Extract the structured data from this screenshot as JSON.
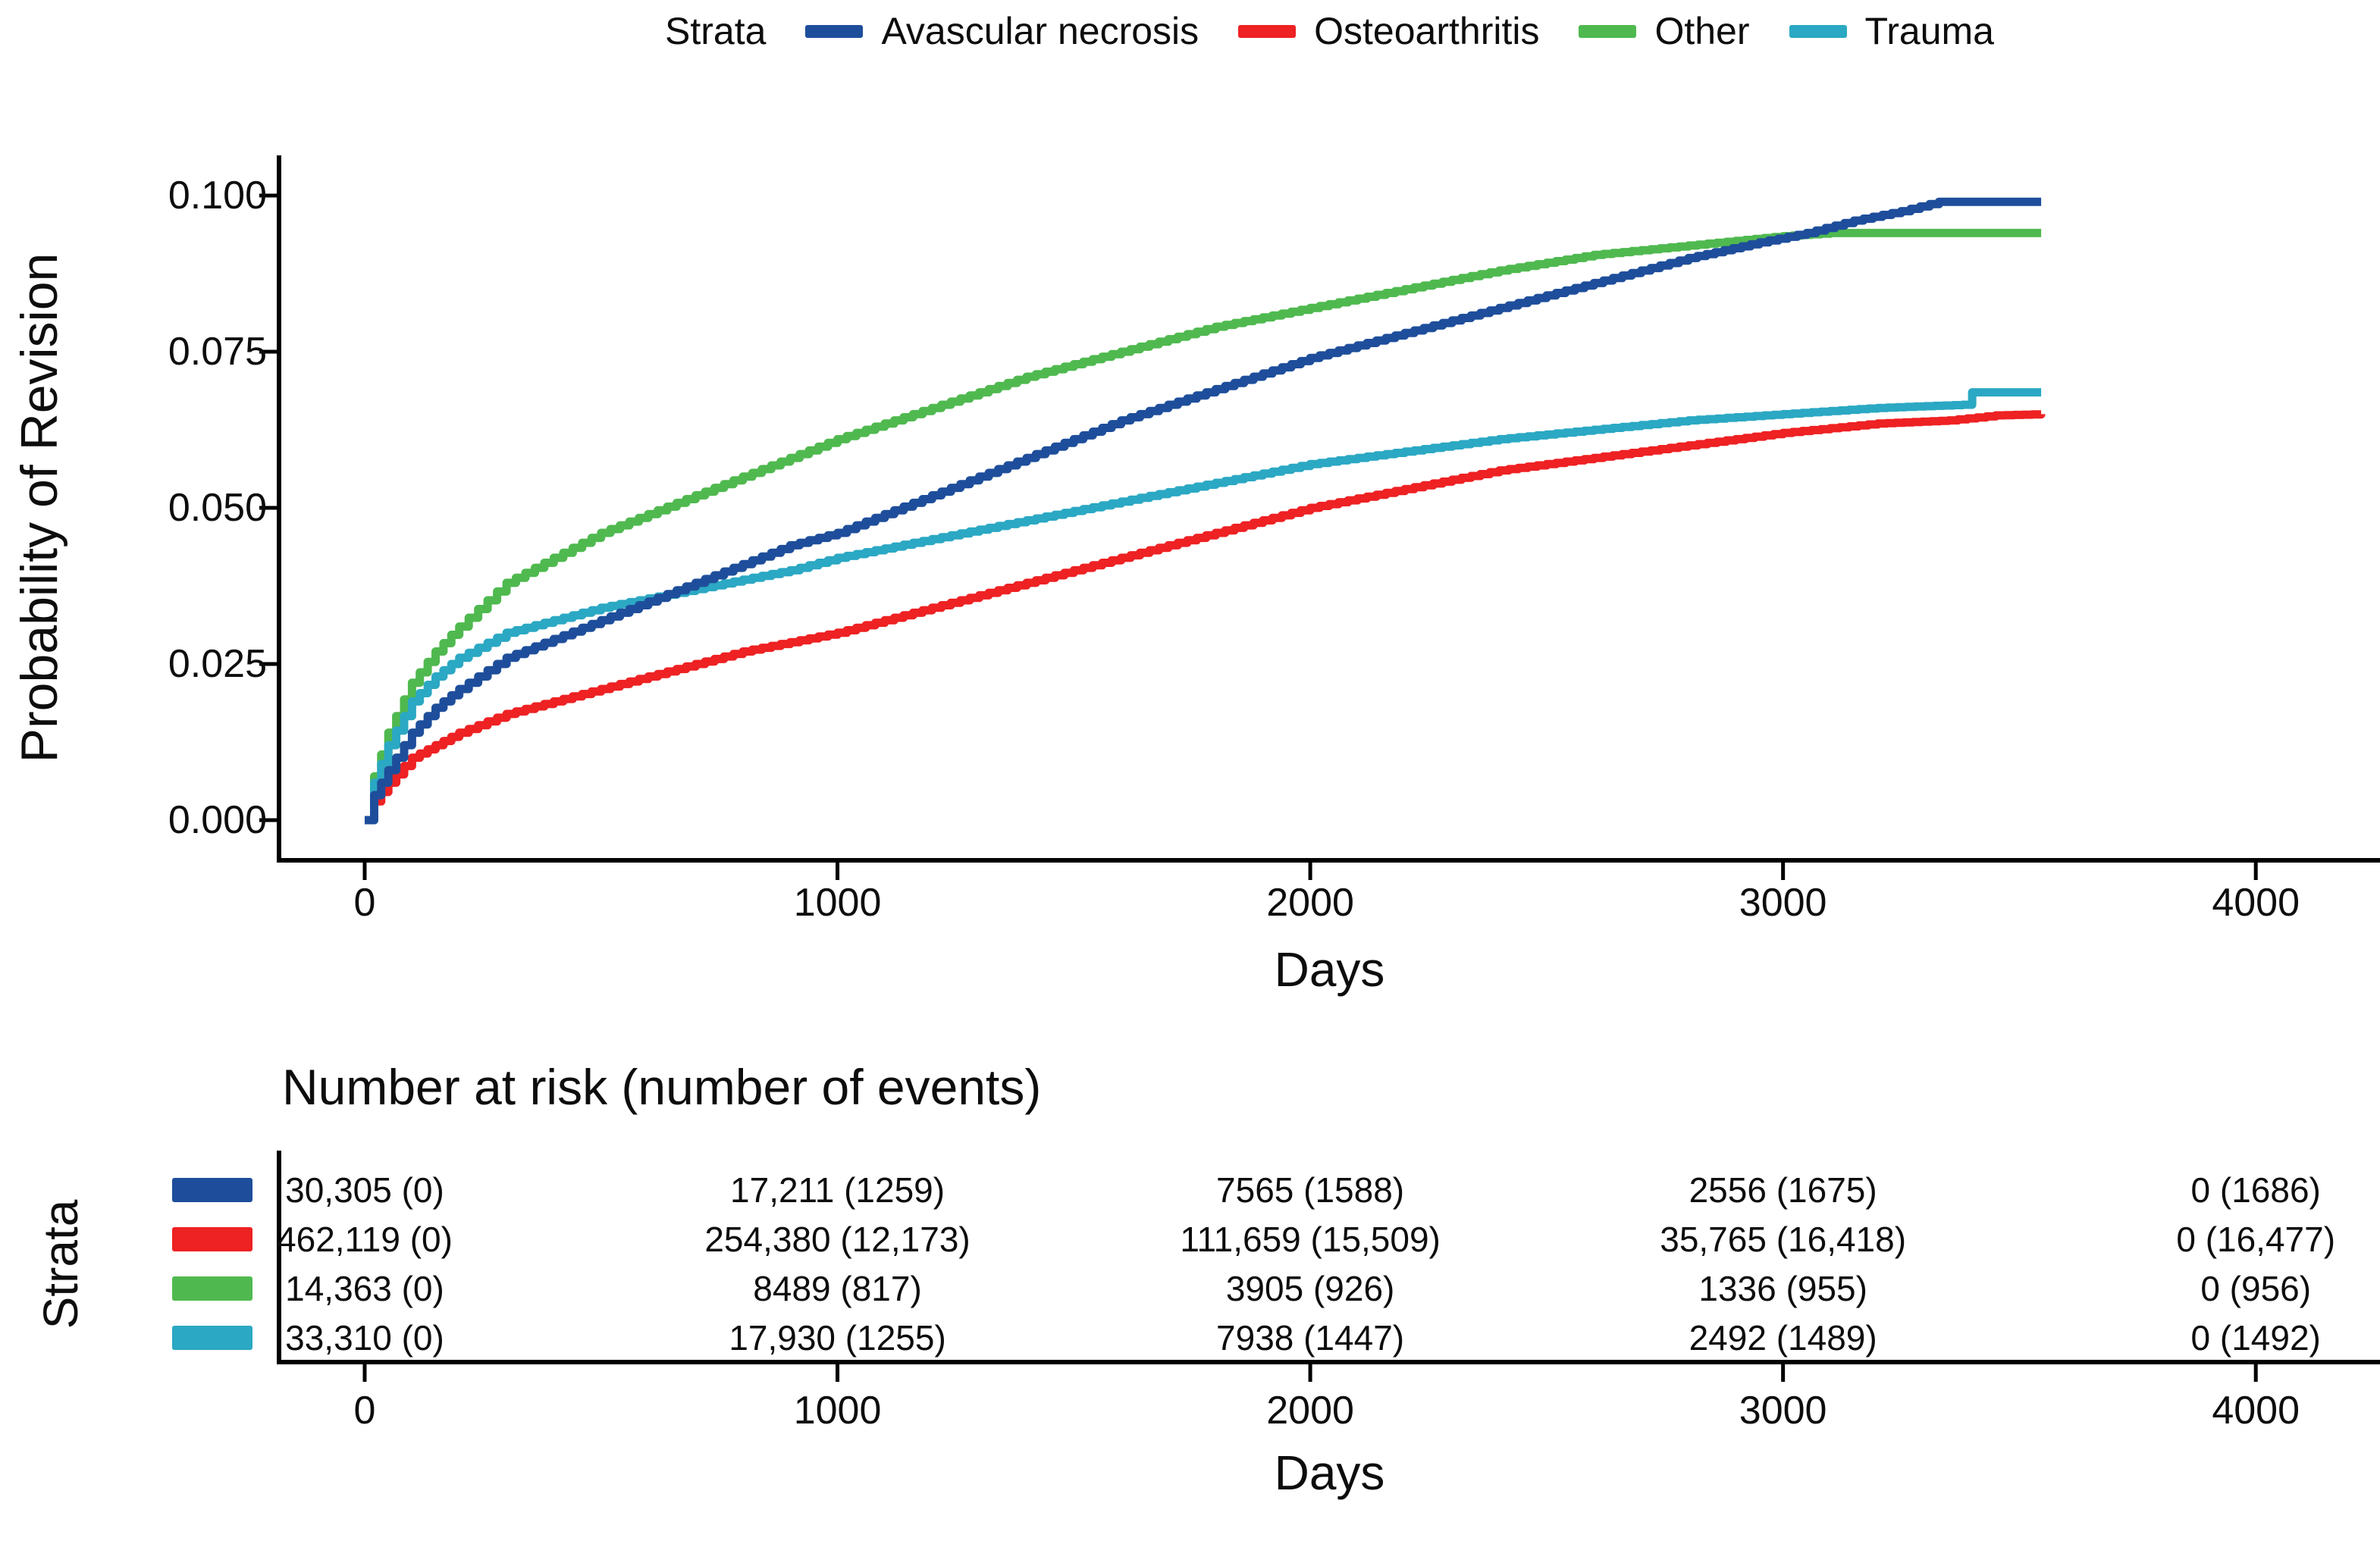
{
  "legend": {
    "title": "Strata",
    "items": [
      {
        "label": "Avascular necrosis",
        "color": "#1E4E9B"
      },
      {
        "label": "Osteoarthritis",
        "color": "#EE2123"
      },
      {
        "label": "Other",
        "color": "#4FB94F"
      },
      {
        "label": "Trauma",
        "color": "#2BA8C3"
      }
    ]
  },
  "chart_data": {
    "type": "line",
    "subtype": "kaplan-meier-cumulative-incidence",
    "title": "",
    "xlabel": "Days",
    "ylabel": "Probability of Revision",
    "xlim": [
      0,
      4300
    ],
    "ylim": [
      0,
      0.1
    ],
    "x_ticks": [
      0,
      1000,
      2000,
      3000,
      4000
    ],
    "y_ticks": [
      "0.000",
      "0.025",
      "0.050",
      "0.075",
      "0.100"
    ],
    "grid": false,
    "legend_position": "top",
    "series": [
      {
        "id": "avascular-necrosis",
        "name": "Avascular necrosis",
        "color": "#1E4E9B",
        "z": 4,
        "x": [
          0,
          20,
          50,
          100,
          150,
          200,
          300,
          400,
          500,
          600,
          700,
          800,
          900,
          1000,
          1200,
          1400,
          1600,
          1800,
          2000,
          2200,
          2400,
          2600,
          2800,
          2950,
          3050,
          3150,
          3250,
          3330,
          3400,
          3546
        ],
        "y": [
          0,
          0.004,
          0.008,
          0.014,
          0.018,
          0.021,
          0.026,
          0.029,
          0.032,
          0.035,
          0.038,
          0.041,
          0.044,
          0.046,
          0.052,
          0.058,
          0.064,
          0.069,
          0.074,
          0.078,
          0.082,
          0.086,
          0.09,
          0.0925,
          0.094,
          0.096,
          0.0975,
          0.099,
          0.099,
          0.099
        ]
      },
      {
        "id": "osteoarthritis",
        "name": "Osteoarthritis",
        "color": "#EE2123",
        "z": 1,
        "x": [
          0,
          20,
          50,
          100,
          150,
          200,
          300,
          400,
          500,
          600,
          700,
          800,
          900,
          1000,
          1200,
          1400,
          1600,
          1800,
          2000,
          2200,
          2400,
          2600,
          2800,
          3000,
          3200,
          3350,
          3450,
          3546
        ],
        "y": [
          0,
          0.003,
          0.006,
          0.01,
          0.012,
          0.014,
          0.017,
          0.019,
          0.021,
          0.023,
          0.025,
          0.027,
          0.0285,
          0.03,
          0.034,
          0.038,
          0.042,
          0.046,
          0.05,
          0.053,
          0.056,
          0.058,
          0.06,
          0.062,
          0.0635,
          0.064,
          0.0648,
          0.065
        ]
      },
      {
        "id": "other",
        "name": "Other",
        "color": "#4FB94F",
        "z": 2,
        "x": [
          0,
          20,
          50,
          100,
          150,
          200,
          300,
          400,
          500,
          600,
          700,
          800,
          900,
          1000,
          1200,
          1400,
          1600,
          1800,
          2000,
          2200,
          2400,
          2600,
          2800,
          3000,
          3100,
          3546
        ],
        "y": [
          0,
          0.007,
          0.014,
          0.022,
          0.027,
          0.031,
          0.038,
          0.042,
          0.046,
          0.049,
          0.052,
          0.055,
          0.058,
          0.061,
          0.066,
          0.071,
          0.075,
          0.079,
          0.082,
          0.085,
          0.088,
          0.0905,
          0.092,
          0.0935,
          0.094,
          0.094
        ]
      },
      {
        "id": "trauma",
        "name": "Trauma",
        "color": "#2BA8C3",
        "z": 3,
        "x": [
          0,
          20,
          50,
          100,
          150,
          200,
          300,
          400,
          500,
          600,
          700,
          800,
          900,
          1000,
          1200,
          1400,
          1600,
          1800,
          2000,
          2200,
          2400,
          2600,
          2800,
          3000,
          3200,
          3380,
          3400,
          3546
        ],
        "y": [
          0,
          0.006,
          0.012,
          0.019,
          0.023,
          0.026,
          0.03,
          0.032,
          0.034,
          0.0355,
          0.037,
          0.0385,
          0.04,
          0.042,
          0.045,
          0.048,
          0.051,
          0.054,
          0.057,
          0.059,
          0.061,
          0.0625,
          0.064,
          0.065,
          0.066,
          0.0665,
          0.0685,
          0.0685
        ]
      }
    ]
  },
  "risk_table": {
    "title": "Number at risk (number of events)",
    "ylabel": "Strata",
    "xlabel": "Days",
    "x_ticks": [
      0,
      1000,
      2000,
      3000,
      4000
    ],
    "rows": [
      {
        "label": "Avascular necrosis",
        "color": "#1E4E9B",
        "values": [
          "30,305 (0)",
          "17,211 (1259)",
          "7565 (1588)",
          "2556 (1675)",
          "0 (1686)"
        ]
      },
      {
        "label": "Osteoarthritis",
        "color": "#EE2123",
        "values": [
          "462,119 (0)",
          "254,380 (12,173)",
          "111,659 (15,509)",
          "35,765 (16,418)",
          "0 (16,477)"
        ]
      },
      {
        "label": "Other",
        "color": "#4FB94F",
        "values": [
          "14,363 (0)",
          "8489 (817)",
          "3905 (926)",
          "1336 (955)",
          "0 (956)"
        ]
      },
      {
        "label": "Trauma",
        "color": "#2BA8C3",
        "values": [
          "33,310 (0)",
          "17,930 (1255)",
          "7938 (1447)",
          "2492 (1489)",
          "0 (1492)"
        ]
      }
    ]
  }
}
